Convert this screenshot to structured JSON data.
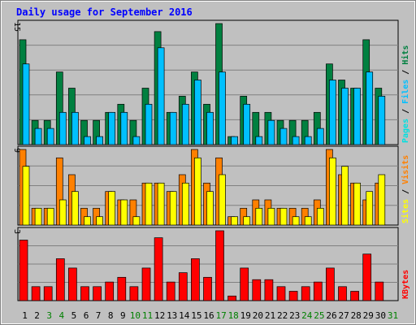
{
  "title": "Daily usage for September 2016",
  "colors": {
    "background": "#c0c0c0",
    "border": "#808080",
    "title": "#0000ff",
    "hits": "#008040",
    "files": "#00c0ff",
    "pages": "#00e0e0",
    "visits": "#ff8000",
    "sites": "#ffff00",
    "kbytes": "#ff0000",
    "weekend_day": "#008000",
    "weekday": "#000000"
  },
  "chart_data": [
    {
      "type": "bar",
      "panel": "hits-files-pages",
      "y_max_label": "15",
      "legend": [
        {
          "key": "hits",
          "label": "Hits"
        },
        {
          "key": "files",
          "label": "Files"
        },
        {
          "key": "pages",
          "label": "Pages"
        }
      ],
      "legend_separator": " / ",
      "ylim": [
        0,
        15
      ],
      "categories": [
        1,
        2,
        3,
        4,
        5,
        6,
        7,
        8,
        9,
        10,
        11,
        12,
        13,
        14,
        15,
        16,
        17,
        18,
        19,
        20,
        21,
        22,
        23,
        24,
        25,
        26,
        27,
        28,
        29,
        30,
        31
      ],
      "series": [
        {
          "key": "hits",
          "name": "Hits",
          "values": [
            13,
            3,
            3,
            9,
            7,
            3,
            3,
            4,
            5,
            3,
            7,
            14,
            4,
            6,
            9,
            5,
            15,
            1,
            6,
            4,
            4,
            3,
            3,
            3,
            4,
            10,
            8,
            7,
            13,
            7,
            0
          ]
        },
        {
          "key": "files",
          "name": "Files",
          "values": [
            10,
            2,
            2,
            4,
            4,
            1,
            1,
            4,
            4,
            1,
            5,
            12,
            4,
            5,
            8,
            4,
            9,
            1,
            5,
            1,
            3,
            2,
            1,
            1,
            2,
            8,
            7,
            7,
            9,
            6,
            0
          ]
        },
        {
          "key": "pages",
          "name": "Pages",
          "values": [
            0,
            0,
            0,
            0,
            0,
            0,
            0,
            0,
            0,
            0,
            0,
            0,
            0,
            0,
            0,
            0,
            0,
            0,
            0,
            0,
            0,
            0,
            0,
            0,
            0,
            0,
            0,
            0,
            0,
            0,
            0
          ]
        }
      ]
    },
    {
      "type": "bar",
      "panel": "visits-sites",
      "y_max_label": "9",
      "legend": [
        {
          "key": "visits",
          "label": "Visits"
        },
        {
          "key": "sites",
          "label": "Sites"
        }
      ],
      "legend_separator": " / ",
      "ylim": [
        0,
        9
      ],
      "categories": [
        1,
        2,
        3,
        4,
        5,
        6,
        7,
        8,
        9,
        10,
        11,
        12,
        13,
        14,
        15,
        16,
        17,
        18,
        19,
        20,
        21,
        22,
        23,
        24,
        25,
        26,
        27,
        28,
        29,
        30,
        31
      ],
      "series": [
        {
          "key": "visits",
          "name": "Visits",
          "values": [
            9,
            2,
            2,
            8,
            6,
            2,
            2,
            4,
            3,
            3,
            5,
            5,
            4,
            6,
            9,
            5,
            8,
            1,
            2,
            3,
            3,
            2,
            2,
            2,
            3,
            9,
            6,
            5,
            3,
            5,
            0
          ]
        },
        {
          "key": "sites",
          "name": "Sites",
          "values": [
            7,
            2,
            2,
            3,
            4,
            1,
            1,
            4,
            3,
            1,
            5,
            5,
            4,
            5,
            8,
            4,
            6,
            1,
            1,
            2,
            2,
            2,
            1,
            1,
            2,
            8,
            7,
            5,
            4,
            6,
            0
          ]
        }
      ]
    },
    {
      "type": "bar",
      "panel": "kbytes",
      "y_max_label": "3",
      "legend": [
        {
          "key": "kbytes",
          "label": "KBytes"
        }
      ],
      "legend_separator": "",
      "ylim": [
        0,
        3
      ],
      "categories": [
        1,
        2,
        3,
        4,
        5,
        6,
        7,
        8,
        9,
        10,
        11,
        12,
        13,
        14,
        15,
        16,
        17,
        18,
        19,
        20,
        21,
        22,
        23,
        24,
        25,
        26,
        27,
        28,
        29,
        30,
        31
      ],
      "series": [
        {
          "key": "kbytes",
          "name": "KBytes",
          "values": [
            2.6,
            0.6,
            0.6,
            1.8,
            1.4,
            0.6,
            0.6,
            0.8,
            1.0,
            0.6,
            1.4,
            2.7,
            0.8,
            1.2,
            1.8,
            1.0,
            3.0,
            0.2,
            1.4,
            0.9,
            0.9,
            0.6,
            0.4,
            0.6,
            0.8,
            1.4,
            0.6,
            0.4,
            2.0,
            0.8,
            0
          ]
        }
      ]
    }
  ],
  "x_axis": {
    "labels": [
      "1",
      "2",
      "3",
      "4",
      "5",
      "6",
      "7",
      "8",
      "9",
      "10",
      "11",
      "12",
      "13",
      "14",
      "15",
      "16",
      "17",
      "18",
      "19",
      "20",
      "21",
      "22",
      "23",
      "24",
      "25",
      "26",
      "27",
      "28",
      "29",
      "30",
      "31"
    ],
    "weekend": [
      false,
      false,
      true,
      true,
      false,
      false,
      false,
      false,
      false,
      true,
      true,
      false,
      false,
      false,
      false,
      false,
      true,
      true,
      false,
      false,
      false,
      false,
      false,
      true,
      true,
      false,
      false,
      false,
      false,
      false,
      true
    ]
  }
}
